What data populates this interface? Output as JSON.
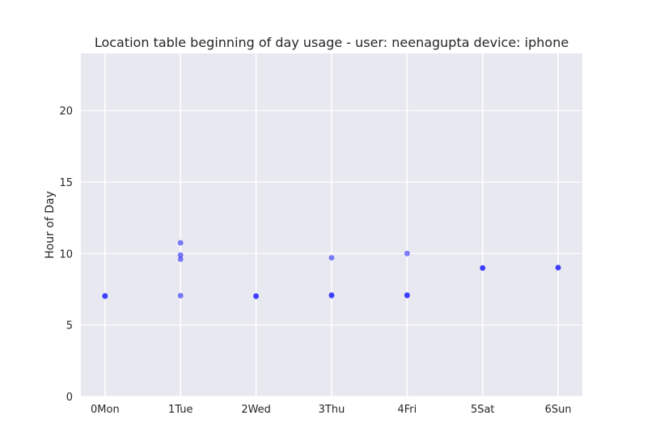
{
  "chart_data": {
    "type": "scatter",
    "title": "Location table beginning of day usage -  user: neenagupta device: iphone",
    "xlabel": "",
    "ylabel": "Hour of Day",
    "categories": [
      "0Mon",
      "1Tue",
      "2Wed",
      "3Thu",
      "4Fri",
      "5Sat",
      "6Sun"
    ],
    "ylim": [
      0,
      24
    ],
    "yticks": [
      0,
      5,
      10,
      15,
      20
    ],
    "grid": true,
    "background": "#e8e8f0",
    "marker_color": "#0000ff",
    "points": [
      {
        "x": 0,
        "y": 7.0
      },
      {
        "x": 0,
        "y": 7.05
      },
      {
        "x": 1,
        "y": 7.05
      },
      {
        "x": 1,
        "y": 9.6
      },
      {
        "x": 1,
        "y": 9.9
      },
      {
        "x": 1,
        "y": 10.75
      },
      {
        "x": 2,
        "y": 7.0
      },
      {
        "x": 2,
        "y": 7.03
      },
      {
        "x": 3,
        "y": 7.05
      },
      {
        "x": 3,
        "y": 7.1
      },
      {
        "x": 3,
        "y": 9.7
      },
      {
        "x": 4,
        "y": 7.05
      },
      {
        "x": 4,
        "y": 7.1
      },
      {
        "x": 4,
        "y": 10.0
      },
      {
        "x": 5,
        "y": 8.98
      },
      {
        "x": 5,
        "y": 9.0
      },
      {
        "x": 6,
        "y": 9.0
      },
      {
        "x": 6,
        "y": 9.03
      }
    ]
  }
}
